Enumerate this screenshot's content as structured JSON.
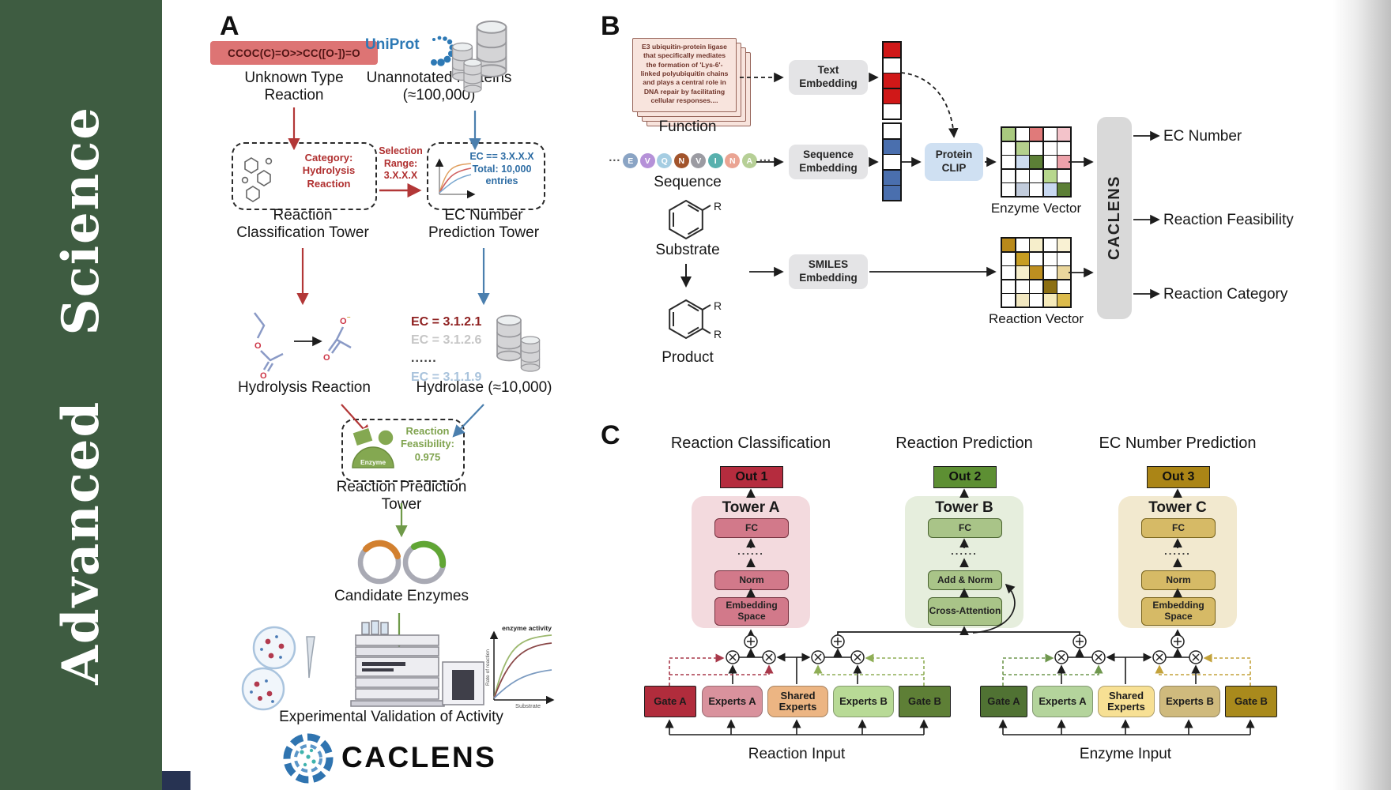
{
  "journal": {
    "name": "Advanced Science"
  },
  "panelA": {
    "label": "A",
    "smiles": "CCOC(C)=O>>CC([O-])=O",
    "unknown": "Unknown Type Reaction",
    "uniprot": "UniProt",
    "unannotated": "Unannotated Proteins (≈100,000)",
    "category": "Category: Hydrolysis Reaction",
    "selection": "Selection Range: 3.X.X.X",
    "ec_box": "EC == 3.X.X.X Total: 10,000 entries",
    "tower1": "Reaction Classification Tower",
    "tower2": "EC Number Prediction Tower",
    "ec_list": [
      "EC = 3.1.2.1",
      "EC = 3.1.2.6",
      "......",
      "EC = 3.1.1.9"
    ],
    "hydrolysis": "Hydrolysis Reaction",
    "hydrolase": "Hydrolase (≈10,000)",
    "enzyme": "Enzyme",
    "feasibility": "Reaction Feasibility: 0.975",
    "tower3": "Reaction Prediction Tower",
    "candidates": "Candidate Enzymes",
    "validation": "Experimental Validation of Activity",
    "activity": {
      "ylabel": "Rate of reaction",
      "xlabel": "Substrate",
      "annotation": "enzyme activity"
    },
    "logo": "CACLENS"
  },
  "panelB": {
    "label": "B",
    "function_text": "E3 ubiquitin-protein ligase that specifically mediates the formation of 'Lys-6'-linked polyubiquitin chains and plays a central role in DNA repair by facilitating cellular responses....",
    "function_label": "Function",
    "ellipsis": "···",
    "sequence_letters": [
      {
        "l": "E",
        "c": "#8aa4c4"
      },
      {
        "l": "V",
        "c": "#b591d8"
      },
      {
        "l": "Q",
        "c": "#a5cde2"
      },
      {
        "l": "N",
        "c": "#a2542c"
      },
      {
        "l": "V",
        "c": "#9b9ba2"
      },
      {
        "l": "I",
        "c": "#58b1ae"
      },
      {
        "l": "N",
        "c": "#eaa493"
      },
      {
        "l": "A",
        "c": "#b6cf96"
      }
    ],
    "sequence_label": "Sequence",
    "substrate_label": "Substrate",
    "product_label": "Product",
    "r_label": "R",
    "text_embedding": "Text Embedding",
    "sequence_embedding": "Sequence Embedding",
    "smiles_embedding": "SMILES Embedding",
    "protein_clip": "Protein CLIP",
    "text_vector": [
      "#d01818",
      "#ffffff",
      "#d01818",
      "#d01818",
      "#ffffff"
    ],
    "sequence_vector": [
      "#ffffff",
      "#4a6fae",
      "#ffffff",
      "#4a6fae",
      "#4a6fae"
    ],
    "enzyme_vector_label": "Enzyme Vector",
    "reaction_vector_label": "Reaction Vector",
    "enzyme_matrix": [
      [
        "#a9c97f",
        "#ffffff",
        "#e07a7a",
        "#ffffff",
        "#f3c3ca"
      ],
      [
        "#ffffff",
        "#b4d08d",
        "#ffffff",
        "#ffffff",
        "#ffffff"
      ],
      [
        "#ffffff",
        "#cddcf0",
        "#5c7f36",
        "#ffffff",
        "#eda2aa"
      ],
      [
        "#ffffff",
        "#ffffff",
        "#ffffff",
        "#b7d78e",
        "#ffffff"
      ],
      [
        "#ffffff",
        "#c2ccdc",
        "#ffffff",
        "#c9d9f1",
        "#5c7f36"
      ]
    ],
    "reaction_matrix": [
      [
        "#b8891b",
        "#ffffff",
        "#f6eecb",
        "#ffffff",
        "#f9f1d3"
      ],
      [
        "#ffffff",
        "#c79d22",
        "#ffffff",
        "#ffffff",
        "#ffffff"
      ],
      [
        "#ffffff",
        "#f6eecb",
        "#bd8f20",
        "#ffffff",
        "#ead69c"
      ],
      [
        "#ffffff",
        "#ffffff",
        "#ffffff",
        "#8c6f13",
        "#ffffff"
      ],
      [
        "#ffffff",
        "#f1e7c0",
        "#ffffff",
        "#f6eaba",
        "#dcbb4c"
      ]
    ],
    "caclens_bar": "CACLENS",
    "outputs": [
      "EC Number",
      "Reaction Feasibility",
      "Reaction Category"
    ]
  },
  "panelC": {
    "label": "C",
    "sections": [
      {
        "title": "Reaction Classification",
        "out": "Out 1",
        "tower": "Tower A",
        "layers": [
          "FC",
          "......",
          "Norm",
          "Embedding Space"
        ]
      },
      {
        "title": "Reaction Prediction",
        "out": "Out 2",
        "tower": "Tower B",
        "layers": [
          "FC",
          "......",
          "Add & Norm",
          "Cross-Attention"
        ]
      },
      {
        "title": "EC Number Prediction",
        "out": "Out 3",
        "tower": "Tower C",
        "layers": [
          "FC",
          "......",
          "Norm",
          "Embedding Space"
        ]
      }
    ],
    "groups": [
      {
        "label": "Reaction Input",
        "boxes": [
          "Gate A",
          "Experts A",
          "Shared Experts",
          "Experts B",
          "Gate B"
        ]
      },
      {
        "label": "Enzyme Input",
        "boxes": [
          "Gate A",
          "Experts A",
          "Shared Experts",
          "Experts B",
          "Gate B"
        ]
      }
    ]
  },
  "colors": {
    "band_green": "#3e5c41",
    "accent_red": "#b23737",
    "accent_blue": "#4b7fae",
    "accent_green": "#6f9a49"
  }
}
